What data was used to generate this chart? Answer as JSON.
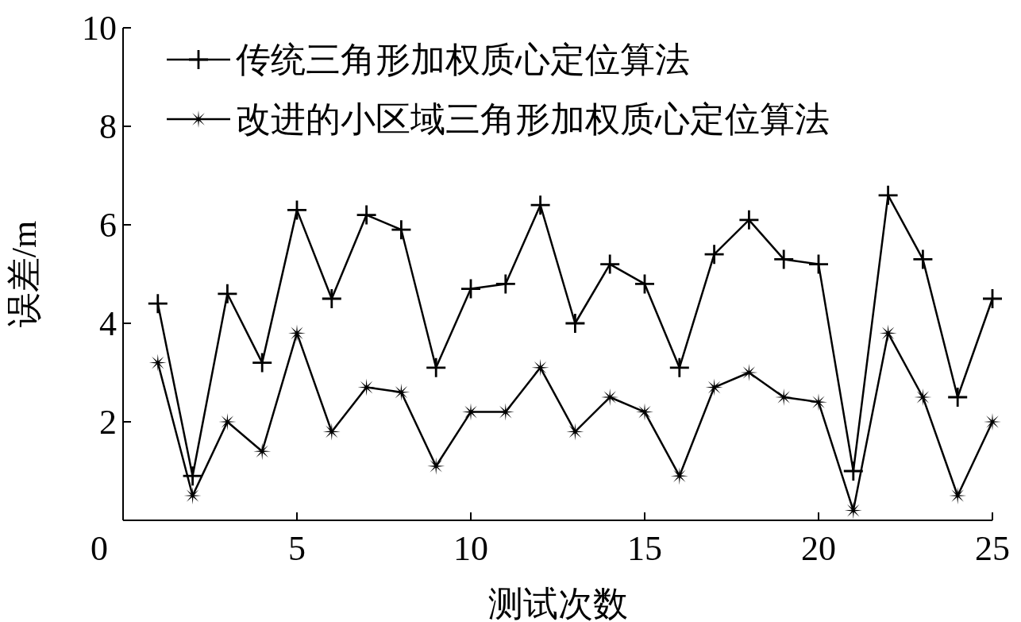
{
  "chart_data": {
    "type": "line",
    "xlabel": "测试次数",
    "ylabel": "误差/m",
    "x": [
      1,
      2,
      3,
      4,
      5,
      6,
      7,
      8,
      9,
      10,
      11,
      12,
      13,
      14,
      15,
      16,
      17,
      18,
      19,
      20,
      21,
      22,
      23,
      24,
      25
    ],
    "xlim": [
      0,
      25
    ],
    "xticks": [
      0,
      5,
      10,
      15,
      20,
      25
    ],
    "ylim": [
      0,
      10
    ],
    "yticks": [
      2,
      4,
      6,
      8,
      10
    ],
    "grid": false,
    "legend": "top left",
    "line_style": "solid",
    "series": [
      {
        "name": "传统三角形加权质心定位算法",
        "color": "#000000",
        "marker": "cross",
        "values": [
          4.4,
          0.9,
          4.6,
          3.2,
          6.3,
          4.5,
          6.2,
          5.9,
          3.1,
          4.7,
          4.8,
          6.4,
          4.0,
          5.2,
          4.8,
          3.1,
          5.4,
          6.1,
          5.3,
          5.2,
          1.0,
          6.6,
          5.3,
          2.5,
          4.5
        ]
      },
      {
        "name": "改进的小区域三角形加权质心定位算法",
        "color": "#000000",
        "marker": "star",
        "values": [
          3.2,
          0.5,
          2.0,
          1.4,
          3.8,
          1.8,
          2.7,
          2.6,
          1.1,
          2.2,
          2.2,
          3.1,
          1.8,
          2.5,
          2.2,
          0.9,
          2.7,
          3.0,
          2.5,
          2.4,
          0.2,
          3.8,
          2.5,
          0.5,
          2.0
        ]
      }
    ]
  }
}
